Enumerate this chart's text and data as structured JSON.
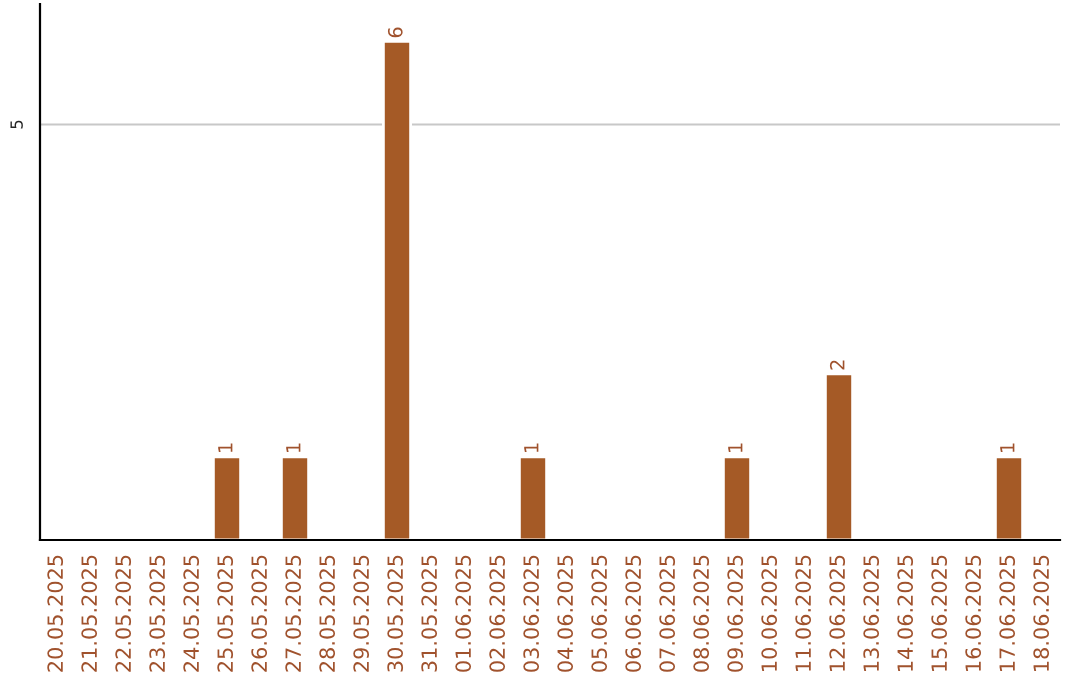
{
  "chart_data": {
    "type": "bar",
    "categories": [
      "20.05.2025",
      "21.05.2025",
      "22.05.2025",
      "23.05.2025",
      "24.05.2025",
      "25.05.2025",
      "26.05.2025",
      "27.05.2025",
      "28.05.2025",
      "29.05.2025",
      "30.05.2025",
      "31.05.2025",
      "01.06.2025",
      "02.06.2025",
      "03.06.2025",
      "04.06.2025",
      "05.06.2025",
      "06.06.2025",
      "07.06.2025",
      "08.06.2025",
      "09.06.2025",
      "10.06.2025",
      "11.06.2025",
      "12.06.2025",
      "13.06.2025",
      "14.06.2025",
      "15.06.2025",
      "16.06.2025",
      "17.06.2025",
      "18.06.2025"
    ],
    "values": [
      null,
      null,
      null,
      null,
      null,
      1,
      null,
      1,
      null,
      null,
      6,
      null,
      null,
      null,
      1,
      null,
      null,
      null,
      null,
      null,
      1,
      null,
      null,
      2,
      null,
      null,
      null,
      null,
      1,
      null
    ],
    "value_labels": [
      null,
      null,
      null,
      null,
      null,
      "1",
      null,
      "1",
      null,
      null,
      "6",
      null,
      null,
      null,
      "1",
      null,
      null,
      null,
      null,
      null,
      "1",
      null,
      null,
      "2",
      null,
      null,
      null,
      null,
      "1",
      null
    ],
    "color": "#a55a26",
    "ylim": [
      0,
      6.45
    ],
    "yticks": [
      5
    ],
    "grid": "y"
  }
}
